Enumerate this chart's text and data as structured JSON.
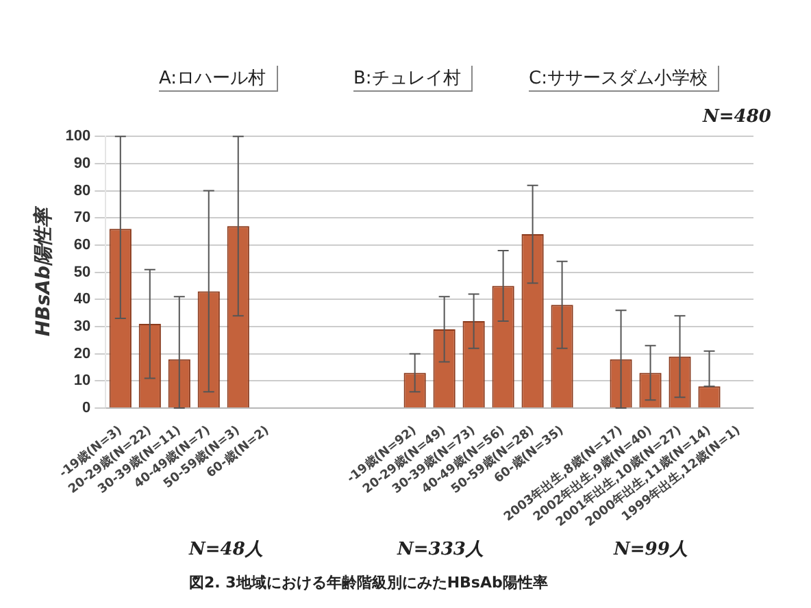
{
  "chart_data": {
    "type": "bar",
    "title": null,
    "ylabel": "HBsAb陽性率",
    "categories": [
      "-19歳(N=3)",
      "20-29歳(N=22)",
      "30-39歳(N=11)",
      "40-49歳(N=7)",
      "50-59歳(N=3)",
      "60-歳(N=2)",
      null,
      null,
      null,
      null,
      "-19歳(N=92)",
      "20-29歳(N=49)",
      "30-39歳(N=73)",
      "40-49歳(N=56)",
      "50-59歳(N=28)",
      "60-歳(N=35)",
      null,
      "2003年出生,8歳(N=17)",
      "2002年出生,9歳(N=40)",
      "2001年出生,10歳(N=27)",
      "2000年出生,11歳(N=14)",
      "1999年出生,12歳(N=1)"
    ],
    "values": [
      66,
      31,
      18,
      43,
      67,
      0,
      null,
      null,
      null,
      null,
      13,
      29,
      32,
      45,
      64,
      38,
      null,
      18,
      13,
      19,
      8,
      0
    ],
    "errors": [
      [
        33,
        100
      ],
      [
        11,
        51
      ],
      [
        0,
        41
      ],
      [
        6,
        80
      ],
      [
        34,
        100
      ],
      null,
      null,
      null,
      null,
      null,
      [
        6,
        20
      ],
      [
        17,
        41
      ],
      [
        22,
        42
      ],
      [
        32,
        58
      ],
      [
        46,
        82
      ],
      [
        22,
        54
      ],
      null,
      [
        0,
        36
      ],
      [
        3,
        23
      ],
      [
        4,
        34
      ],
      [
        8,
        21
      ],
      null
    ],
    "color": "#c4623c",
    "ylim": [
      0,
      100
    ],
    "yticks": [
      0,
      10,
      20,
      30,
      40,
      50,
      60,
      70,
      80,
      90,
      100
    ],
    "grid": "y",
    "legend": false,
    "annotations": [
      "A:ロハール村",
      "B:チュレイ村",
      "C:ササースダム小学校",
      "N=480",
      "N=48人",
      "N=333人",
      "N=99人",
      "図2.  3地域における年齢階級別にみたHBsAb陽性率"
    ]
  }
}
